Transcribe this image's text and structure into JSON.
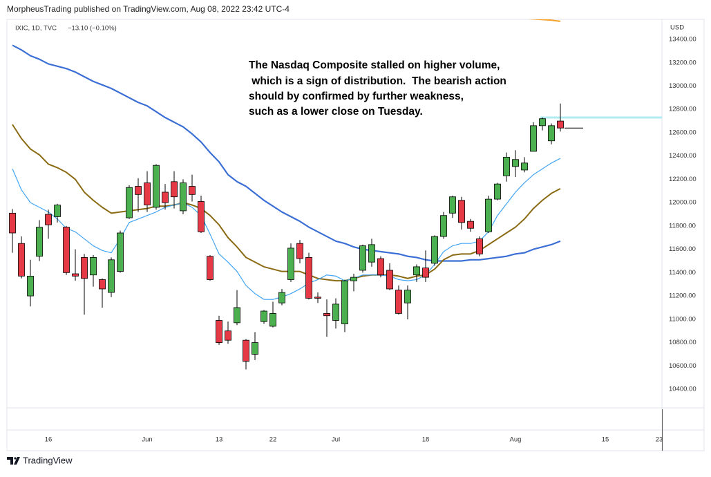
{
  "header": "MorpheusTrading published on TradingView.com, Aug 08, 2022 23:42 UTC-4",
  "footer": "TradingView",
  "chart_data": {
    "type": "candlestick",
    "symbol": "IXIC, 1D, TVC",
    "change": "−13.10 (−0.10%)",
    "currency": "USD",
    "annotation": [
      "The Nasdaq Composite stalled on higher volume,",
      " which is a sign of distribution.  The bearish action",
      "should by confirmed by further weakness,",
      "such as a lower close on Tuesday."
    ],
    "up_color": "#4caf50",
    "down_color": "#e53945",
    "grid": false,
    "ylim": [
      10240,
      13572
    ],
    "yticks": [
      {
        "value": 10400,
        "label": "10400.00"
      },
      {
        "value": 10600,
        "label": "10600.00"
      },
      {
        "value": 10800,
        "label": "10800.00"
      },
      {
        "value": 11000,
        "label": "11000.00"
      },
      {
        "value": 11200,
        "label": "11200.00"
      },
      {
        "value": 11400,
        "label": "11400.00"
      },
      {
        "value": 11600,
        "label": "11600.00"
      },
      {
        "value": 11800,
        "label": "11800.00"
      },
      {
        "value": 12000,
        "label": "12000.00"
      },
      {
        "value": 12200,
        "label": "12200.00"
      },
      {
        "value": 12400,
        "label": "12400.00"
      },
      {
        "value": 12600,
        "label": "12600.00"
      },
      {
        "value": 12800,
        "label": "12800.00"
      },
      {
        "value": 13000,
        "label": "13000.00"
      },
      {
        "value": 13200,
        "label": "13200.00"
      },
      {
        "value": 13400,
        "label": "13400.00"
      }
    ],
    "categories": [
      null,
      null,
      null,
      null,
      "16",
      null,
      null,
      null,
      null,
      null,
      null,
      null,
      null,
      null,
      null,
      "Jun",
      null,
      null,
      null,
      null,
      null,
      null,
      null,
      "13",
      null,
      null,
      null,
      null,
      null,
      "22",
      null,
      null,
      null,
      null,
      null,
      null,
      "Jul",
      null,
      null,
      null,
      null,
      null,
      null,
      null,
      null,
      null,
      "18",
      null,
      null,
      null,
      null,
      null,
      null,
      null,
      null,
      null,
      "Aug",
      null,
      null,
      null,
      null,
      null,
      null,
      null,
      null,
      null,
      "15",
      null,
      null,
      null,
      null,
      null,
      "23"
    ],
    "open": [
      11910,
      11650,
      11200,
      11540,
      11900,
      11880,
      11790,
      11390,
      11530,
      11380,
      11340,
      11230,
      11410,
      11870,
      12140,
      12170,
      11960,
      12090,
      12180,
      11930,
      12140,
      12010,
      11540,
      10990,
      10900,
      10970,
      10820,
      10700,
      10980,
      10940,
      11140,
      11340,
      11650,
      11530,
      11190,
      11050,
      10990,
      10960,
      11330,
      11420,
      11490,
      11520,
      11420,
      11250,
      11140,
      11380,
      11440,
      11480,
      11710,
      11910,
      12020,
      11840,
      11690,
      11750,
      12030,
      12230,
      12310,
      12280,
      12440,
      12660,
      12530,
      12700,
      null,
      null,
      null,
      null,
      null,
      null,
      null,
      null,
      null,
      null,
      null
    ],
    "high": [
      11945,
      11710,
      11510,
      11850,
      11940,
      11990,
      11800,
      11600,
      11560,
      11550,
      11350,
      11530,
      11760,
      12150,
      12210,
      12270,
      12330,
      12160,
      12270,
      12200,
      12240,
      12060,
      11550,
      11030,
      10980,
      11250,
      10830,
      10890,
      11080,
      11150,
      11260,
      11650,
      11680,
      11570,
      11230,
      11170,
      11180,
      11340,
      11390,
      11640,
      11690,
      11540,
      11480,
      11290,
      11290,
      11470,
      11590,
      11720,
      11920,
      12060,
      12050,
      11860,
      11710,
      12060,
      12170,
      12430,
      12450,
      12390,
      12690,
      12730,
      12680,
      12850,
      null,
      null,
      null,
      null,
      null,
      null,
      null,
      null,
      null,
      null,
      null
    ],
    "low": [
      11570,
      11350,
      11110,
      11500,
      11690,
      11830,
      11380,
      11330,
      11040,
      11280,
      11100,
      11190,
      11400,
      11860,
      11920,
      11920,
      11940,
      11940,
      11950,
      11900,
      12010,
      11740,
      11330,
      10780,
      10790,
      10950,
      10570,
      10650,
      10960,
      10930,
      11120,
      11320,
      11480,
      11170,
      11140,
      10850,
      10920,
      10890,
      11240,
      11400,
      11450,
      11360,
      11250,
      11040,
      11000,
      11320,
      11320,
      11460,
      11690,
      11870,
      11770,
      11750,
      11540,
      11740,
      12020,
      12180,
      12220,
      12260,
      12440,
      12620,
      12500,
      12610,
      null,
      null,
      null,
      null,
      null,
      null,
      null,
      null,
      null,
      null,
      null
    ],
    "close": [
      11740,
      11370,
      11370,
      11790,
      11810,
      11980,
      11400,
      11370,
      11350,
      11530,
      11260,
      11510,
      11740,
      12130,
      12070,
      11980,
      12320,
      12000,
      12050,
      12170,
      12070,
      11750,
      11340,
      10800,
      10820,
      11100,
      10640,
      10800,
      11070,
      11050,
      11230,
      11610,
      11520,
      11180,
      11180,
      11030,
      11130,
      11330,
      11360,
      11630,
      11640,
      11380,
      11260,
      11050,
      11250,
      11450,
      11360,
      11710,
      11890,
      12050,
      11830,
      11780,
      11560,
      12030,
      12160,
      12390,
      12370,
      12340,
      12660,
      12720,
      12660,
      12640,
      null,
      null,
      null,
      null,
      null,
      null,
      null,
      null,
      null,
      null,
      null
    ],
    "lines": [
      {
        "color": "#3b6fd6",
        "width": 2.2,
        "values": [
          13350,
          13310,
          13260,
          13230,
          13190,
          13170,
          13150,
          13120,
          13080,
          13040,
          13010,
          12980,
          12940,
          12900,
          12860,
          12830,
          12780,
          12730,
          12690,
          12650,
          12590,
          12520,
          12430,
          12350,
          12240,
          12180,
          12140,
          12080,
          12020,
          11970,
          11920,
          11880,
          11840,
          11790,
          11750,
          11710,
          11670,
          11650,
          11620,
          11600,
          11590,
          11580,
          11570,
          11560,
          11540,
          11530,
          11510,
          11500,
          11500,
          11500,
          11500,
          11510,
          11510,
          11520,
          11530,
          11540,
          11560,
          11570,
          11600,
          11620,
          11640,
          11670,
          null,
          null,
          null,
          null,
          null,
          null,
          null,
          null,
          null,
          null,
          null
        ]
      },
      {
        "color": "#8a6a12",
        "width": 2,
        "values": [
          12670,
          12550,
          12460,
          12410,
          12330,
          12300,
          12260,
          12200,
          12090,
          12020,
          11960,
          11910,
          11920,
          11930,
          11940,
          11950,
          11970,
          11970,
          11980,
          12000,
          11980,
          11950,
          11890,
          11810,
          11700,
          11620,
          11530,
          11490,
          11450,
          11430,
          11410,
          11410,
          11410,
          11380,
          11350,
          11340,
          11330,
          11330,
          11350,
          11370,
          11380,
          11380,
          11380,
          11370,
          11350,
          11370,
          11380,
          11430,
          11510,
          11550,
          11560,
          11560,
          11590,
          11640,
          11690,
          11740,
          11790,
          11860,
          11950,
          12020,
          12080,
          12120,
          null,
          null,
          null,
          null,
          null,
          null,
          null,
          null,
          null,
          null,
          null
        ]
      },
      {
        "color": "#42a5f5",
        "width": 1.2,
        "values": [
          12290,
          12110,
          12000,
          11960,
          11920,
          11860,
          11780,
          11750,
          11690,
          11630,
          11590,
          11570,
          11690,
          11830,
          11860,
          11890,
          11920,
          11960,
          11980,
          12000,
          11960,
          11890,
          11730,
          11560,
          11490,
          11410,
          11290,
          11220,
          11170,
          11170,
          11190,
          11220,
          11260,
          11310,
          11340,
          11380,
          11370,
          11330,
          11350,
          11380,
          11380,
          11380,
          11370,
          11340,
          11330,
          11340,
          11380,
          11470,
          11580,
          11630,
          11650,
          11650,
          11670,
          11750,
          11890,
          11990,
          12090,
          12170,
          12240,
          12290,
          12340,
          12380,
          null,
          null,
          null,
          null,
          null,
          null,
          null,
          null,
          null,
          null,
          null
        ]
      },
      {
        "color": "#f7a021",
        "width": 2,
        "values": [
          null,
          null,
          null,
          null,
          null,
          null,
          null,
          null,
          null,
          null,
          null,
          null,
          null,
          null,
          null,
          null,
          null,
          null,
          null,
          null,
          null,
          null,
          null,
          null,
          null,
          null,
          null,
          null,
          null,
          null,
          null,
          null,
          null,
          null,
          null,
          null,
          null,
          null,
          null,
          null,
          null,
          null,
          null,
          null,
          null,
          null,
          null,
          null,
          null,
          null,
          null,
          null,
          null,
          null,
          null,
          null,
          null,
          13580,
          13575,
          13570,
          13565,
          13555,
          null,
          null,
          null,
          null,
          null,
          null,
          null,
          null,
          null,
          null,
          null
        ]
      }
    ],
    "horizontal_line": {
      "value": 12730,
      "color": "#b2ebf2"
    }
  }
}
